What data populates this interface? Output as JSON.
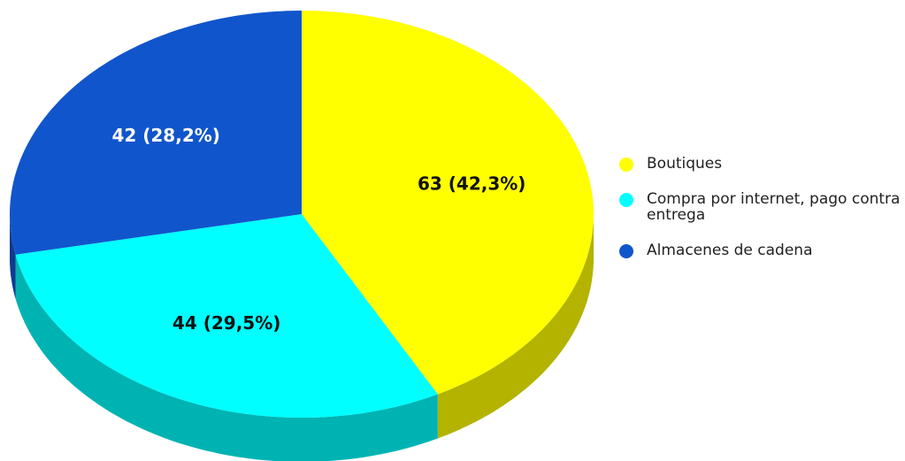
{
  "chart_data": {
    "type": "pie",
    "categories": [
      "Boutiques",
      "Compra por internet, pago contra entrega",
      "Almacenes de cadena"
    ],
    "values": [
      63,
      44,
      42
    ],
    "value_labels": [
      "63 (42,3%)",
      "44 (29,5%)",
      "42 (28,2%)"
    ],
    "colors": [
      "#ffff00",
      "#00ffff",
      "#1155cc"
    ],
    "legend": "right"
  }
}
